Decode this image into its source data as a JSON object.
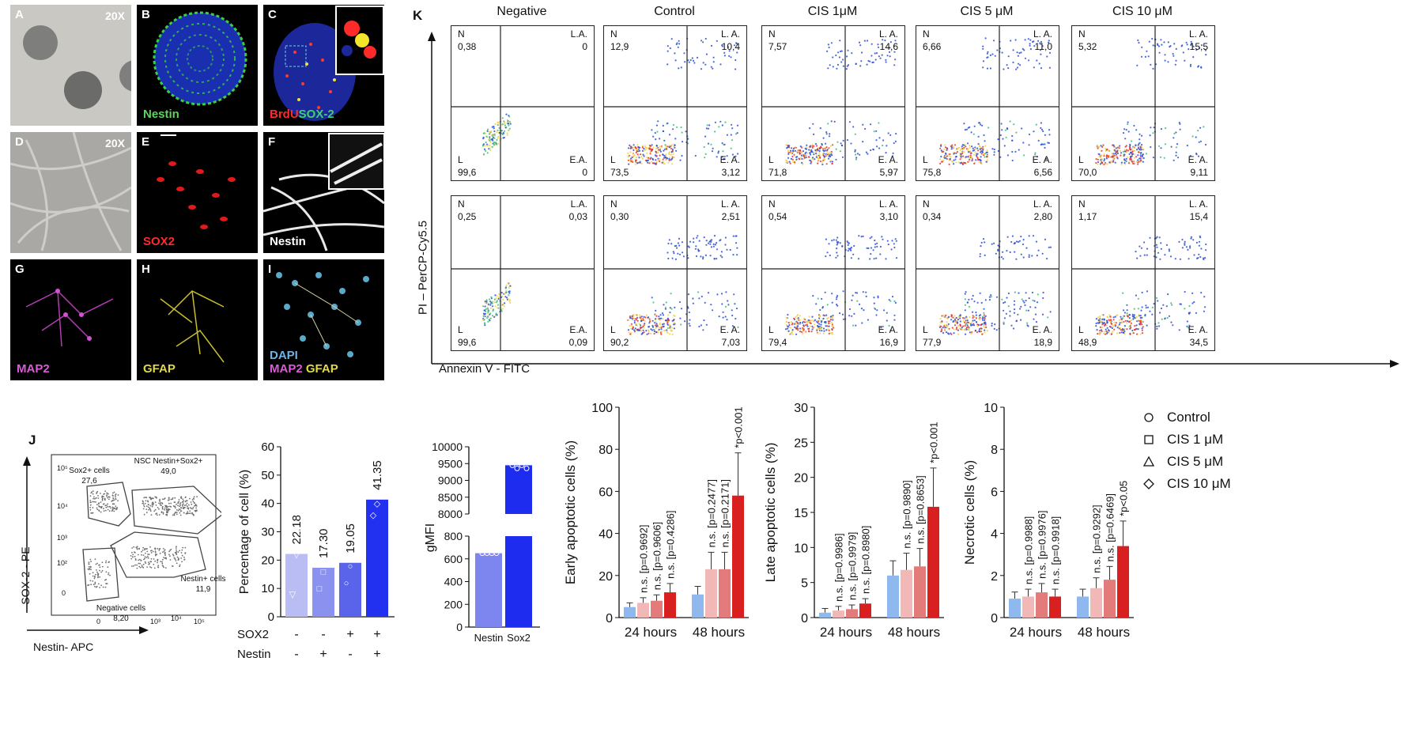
{
  "micro": {
    "tiles": [
      {
        "id": "A",
        "mag": "20X",
        "stain": "",
        "stain_color": "#ffffff"
      },
      {
        "id": "B",
        "mag": "",
        "stain": "Nestin",
        "stain_color": "#5fd35f"
      },
      {
        "id": "C",
        "mag": "",
        "stain": "",
        "stain_color": "#ffffff"
      },
      {
        "id": "D",
        "mag": "20X",
        "stain": "",
        "stain_color": "#ffffff"
      },
      {
        "id": "E",
        "mag": "",
        "stain": "SOX2",
        "stain_color": "#ff2a2a"
      },
      {
        "id": "F",
        "mag": "",
        "stain": "Nestin",
        "stain_color": "#ffffff"
      },
      {
        "id": "G",
        "mag": "",
        "stain": "MAP2",
        "stain_color": "#d95bd9"
      },
      {
        "id": "H",
        "mag": "",
        "stain": "GFAP",
        "stain_color": "#e2d84a"
      },
      {
        "id": "I",
        "mag": "",
        "stain": "",
        "stain_color": "#ffffff"
      }
    ],
    "c_stain_a": "BrdU",
    "c_stain_b": "SOX-2",
    "i_stain_dapi": "DAPI",
    "i_stain_map2": "MAP2",
    "i_stain_gfap": "GFAP"
  },
  "flow": {
    "panel_label": "K",
    "columns": [
      "Negative",
      "Control",
      "CIS 1μM",
      "CIS 5 μM",
      "CIS 10 μM"
    ],
    "y_axis_label": "PI – PerCP-Cy5.5",
    "x_axis_label": "Annexin V - FITC",
    "quadrant_names": {
      "n": "N",
      "la_first": "L.A.",
      "la": "L. A.",
      "l": "L",
      "ea_first": "E.A.",
      "ea": "E. A."
    },
    "rows": [
      [
        {
          "n": "0,38",
          "la": "0",
          "l": "99,6",
          "ea": "0"
        },
        {
          "n": "12,9",
          "la": "10,4",
          "l": "73,5",
          "ea": "3,12"
        },
        {
          "n": "7,57",
          "la": "14,6",
          "l": "71,8",
          "ea": "5,97"
        },
        {
          "n": "6,66",
          "la": "11,0",
          "l": "75,8",
          "ea": "6,56"
        },
        {
          "n": "5,32",
          "la": "15,5",
          "l": "70,0",
          "ea": "9,11"
        }
      ],
      [
        {
          "n": "0,25",
          "la": "0,03",
          "l": "99,6",
          "ea": "0,09"
        },
        {
          "n": "0,30",
          "la": "2,51",
          "l": "90,2",
          "ea": "7,03"
        },
        {
          "n": "0,54",
          "la": "3,10",
          "l": "79,4",
          "ea": "16,9"
        },
        {
          "n": "0,34",
          "la": "2,80",
          "l": "77,9",
          "ea": "18,9"
        },
        {
          "n": "1,17",
          "la": "15,4",
          "l": "48,9",
          "ea": "34,5"
        }
      ]
    ]
  },
  "j": {
    "panel_label": "J",
    "y_axis_label": "SOX-2 - PE",
    "x_axis_label": "Nestin- APC",
    "gates": [
      {
        "name": "Sox2+ cells",
        "value": "27,6"
      },
      {
        "name": "NSC Nestin+Sox2+",
        "value": "49,0"
      },
      {
        "name": "Negative cells",
        "value": "8,20"
      },
      {
        "name": "Nestin+ cells",
        "value": "11,9"
      }
    ]
  },
  "chart_data": [
    {
      "type": "bar",
      "categories": [
        "SOX2- Nestin-",
        "SOX2- Nestin+",
        "SOX2+ Nestin-",
        "SOX2+ Nestin+"
      ],
      "values": [
        22.18,
        17.3,
        19.05,
        41.35
      ],
      "value_labels": [
        "22.18",
        "17.30",
        "19.05",
        "41.35"
      ],
      "ylabel": "Percentage of cell (%)",
      "ylim": [
        0,
        60
      ],
      "yticks": [
        "0",
        "10",
        "20",
        "30",
        "40",
        "50",
        "60"
      ],
      "row_labels": [
        "SOX2",
        "Nestin"
      ],
      "sox2_signs": [
        "-",
        "-",
        "+",
        "+"
      ],
      "nestin_signs": [
        "-",
        "+",
        "-",
        "+"
      ],
      "colors": [
        "#b9bdf4",
        "#8a91ee",
        "#5a64ea",
        "#2230f0"
      ]
    },
    {
      "type": "bar",
      "categories": [
        "Nestin",
        "Sox2"
      ],
      "values": [
        650,
        9450
      ],
      "ylabel": "gMFI",
      "axis_break": true,
      "yticks_lower": [
        "0",
        "200",
        "400",
        "600",
        "800"
      ],
      "yticks_upper": [
        "8000",
        "8500",
        "9000",
        "9500",
        "10000"
      ],
      "colors": [
        "#7d86ee",
        "#1d2cee"
      ]
    },
    {
      "type": "bar",
      "ylabel": "Early  apoptotic cells (%)",
      "ylim": [
        0,
        100
      ],
      "yticks": [
        "0",
        "20",
        "40",
        "60",
        "80",
        "100"
      ],
      "groups": [
        "24 hours",
        "48 hours"
      ],
      "series": [
        {
          "name": "Control",
          "values": [
            5,
            11
          ]
        },
        {
          "name": "CIS 1 μM",
          "values": [
            7,
            23
          ]
        },
        {
          "name": "CIS 5 μM",
          "values": [
            8,
            23
          ]
        },
        {
          "name": "CIS 10 μM",
          "values": [
            12,
            58
          ]
        }
      ],
      "annotations_24": [
        "n.s. [p=0.9692]",
        "n.s. [p=0.9606]",
        "n.s. [p=0.4286]"
      ],
      "annotations_48": [
        "n.s. [p=0.2477]",
        "n.s. [p=0.2171]",
        "*p<0.001"
      ]
    },
    {
      "type": "bar",
      "ylabel": "Late apoptotic cells (%)",
      "ylim": [
        0,
        30
      ],
      "yticks": [
        "0",
        "5",
        "10",
        "15",
        "20",
        "25",
        "30"
      ],
      "groups": [
        "24 hours",
        "48 hours"
      ],
      "series": [
        {
          "name": "Control",
          "values": [
            0.7,
            6
          ]
        },
        {
          "name": "CIS 1 μM",
          "values": [
            1.0,
            6.8
          ]
        },
        {
          "name": "CIS 5 μM",
          "values": [
            1.2,
            7.3
          ]
        },
        {
          "name": "CIS 10 μM",
          "values": [
            2.0,
            15.8
          ]
        }
      ],
      "annotations_24": [
        "n.s. [p=0.9986]",
        "n.s. [p=0.9979]",
        "n.s. [p=0.8980]"
      ],
      "annotations_48": [
        "n.s. [p=0.9890]",
        "n.s. [p=0.8653]",
        "*p<0.001"
      ]
    },
    {
      "type": "bar",
      "ylabel": "Necrotic cells (%)",
      "ylim": [
        0,
        10
      ],
      "yticks": [
        "0",
        "2",
        "4",
        "6",
        "8",
        "10"
      ],
      "groups": [
        "24 hours",
        "48 hours"
      ],
      "series": [
        {
          "name": "Control",
          "values": [
            0.9,
            1.0
          ]
        },
        {
          "name": "CIS 1 μM",
          "values": [
            1.0,
            1.4
          ]
        },
        {
          "name": "CIS 5 μM",
          "values": [
            1.2,
            1.8
          ]
        },
        {
          "name": "CIS 10 μM",
          "values": [
            1.0,
            3.4
          ]
        }
      ],
      "annotations_24": [
        "n.s. [p=0.9988]",
        "n.s. [p=0.9976]",
        "n.s. [p=0.9918]"
      ],
      "annotations_48": [
        "n.s. [p=0.9292]",
        "n.s. [p=0.6469]",
        "*p<0.05"
      ]
    }
  ],
  "legend": {
    "items": [
      {
        "label": "Control",
        "symbol": "circle",
        "color": "#8fb9ee"
      },
      {
        "label": "CIS 1 μM",
        "symbol": "square",
        "color": "#f2b8b8"
      },
      {
        "label": "CIS 5 μM",
        "symbol": "triangle",
        "color": "#e47b7b"
      },
      {
        "label": "CIS 10 μM",
        "symbol": "diamond",
        "color": "#d82020"
      }
    ]
  }
}
